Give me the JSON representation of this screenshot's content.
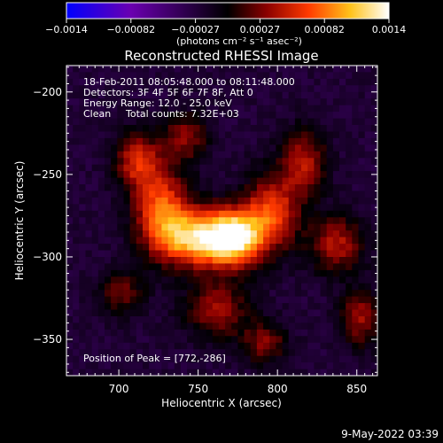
{
  "colorbar": {
    "ticks": [
      "−0.0014",
      "−0.00082",
      "−0.00027",
      "0.00027",
      "0.00082",
      "0.0014"
    ],
    "unit_label": "(photons cm⁻² s⁻¹ asec⁻²)",
    "range": [
      -0.0014,
      0.0014
    ],
    "colors": [
      "#0000ff",
      "#6a00b0",
      "#000000",
      "#8a0000",
      "#ff3a00",
      "#ffc21a",
      "#ffffff"
    ]
  },
  "chart_data": {
    "type": "heatmap",
    "title": "Reconstructed RHESSI Image",
    "xlabel": "Heliocentric X (arcsec)",
    "ylabel": "Heliocentric Y (arcsec)",
    "xlim": [
      667,
      863
    ],
    "ylim": [
      -372,
      -184
    ],
    "xticks": [
      {
        "v": 700,
        "label": "700"
      },
      {
        "v": 750,
        "label": "750"
      },
      {
        "v": 800,
        "label": "800"
      },
      {
        "v": 850,
        "label": "850"
      }
    ],
    "yticks": [
      {
        "v": -200,
        "label": "−200"
      },
      {
        "v": -250,
        "label": "−250"
      },
      {
        "v": -300,
        "label": "−300"
      },
      {
        "v": -350,
        "label": "−350"
      }
    ],
    "annotations": {
      "time": "18-Feb-2011 08:05:48.000 to 08:11:48.000",
      "detectors": "Detectors: 3F 4F 5F 6F 7F 8F, Att 0",
      "energy": "Energy Range: 12.0 - 25.0 keV",
      "clean_label": "Clean",
      "counts": "Total counts: 7.32E+03",
      "peak": "Position of Peak = [772,-286]"
    },
    "peak": [
      772,
      -286
    ],
    "sources": [
      {
        "x": 772,
        "y": -286,
        "sx": 13,
        "sy": 12,
        "amp": 1.0
      },
      {
        "x": 748,
        "y": -287,
        "sx": 16,
        "sy": 12,
        "amp": 0.92
      },
      {
        "x": 725,
        "y": -270,
        "sx": 12,
        "sy": 18,
        "amp": 0.72
      },
      {
        "x": 710,
        "y": -240,
        "sx": 10,
        "sy": 12,
        "amp": 0.55
      },
      {
        "x": 740,
        "y": -225,
        "sx": 10,
        "sy": 10,
        "amp": 0.42
      },
      {
        "x": 795,
        "y": -270,
        "sx": 12,
        "sy": 16,
        "amp": 0.62
      },
      {
        "x": 815,
        "y": -240,
        "sx": 10,
        "sy": 14,
        "amp": 0.48
      },
      {
        "x": 835,
        "y": -290,
        "sx": 12,
        "sy": 12,
        "amp": 0.5
      },
      {
        "x": 760,
        "y": -330,
        "sx": 14,
        "sy": 12,
        "amp": 0.45
      },
      {
        "x": 790,
        "y": -350,
        "sx": 10,
        "sy": 9,
        "amp": 0.4
      },
      {
        "x": 700,
        "y": -320,
        "sx": 10,
        "sy": 10,
        "amp": 0.35
      },
      {
        "x": 850,
        "y": -335,
        "sx": 9,
        "sy": 12,
        "amp": 0.45
      }
    ],
    "background": -0.18
  },
  "footer": {
    "date": "9-May-2022 03:39"
  }
}
